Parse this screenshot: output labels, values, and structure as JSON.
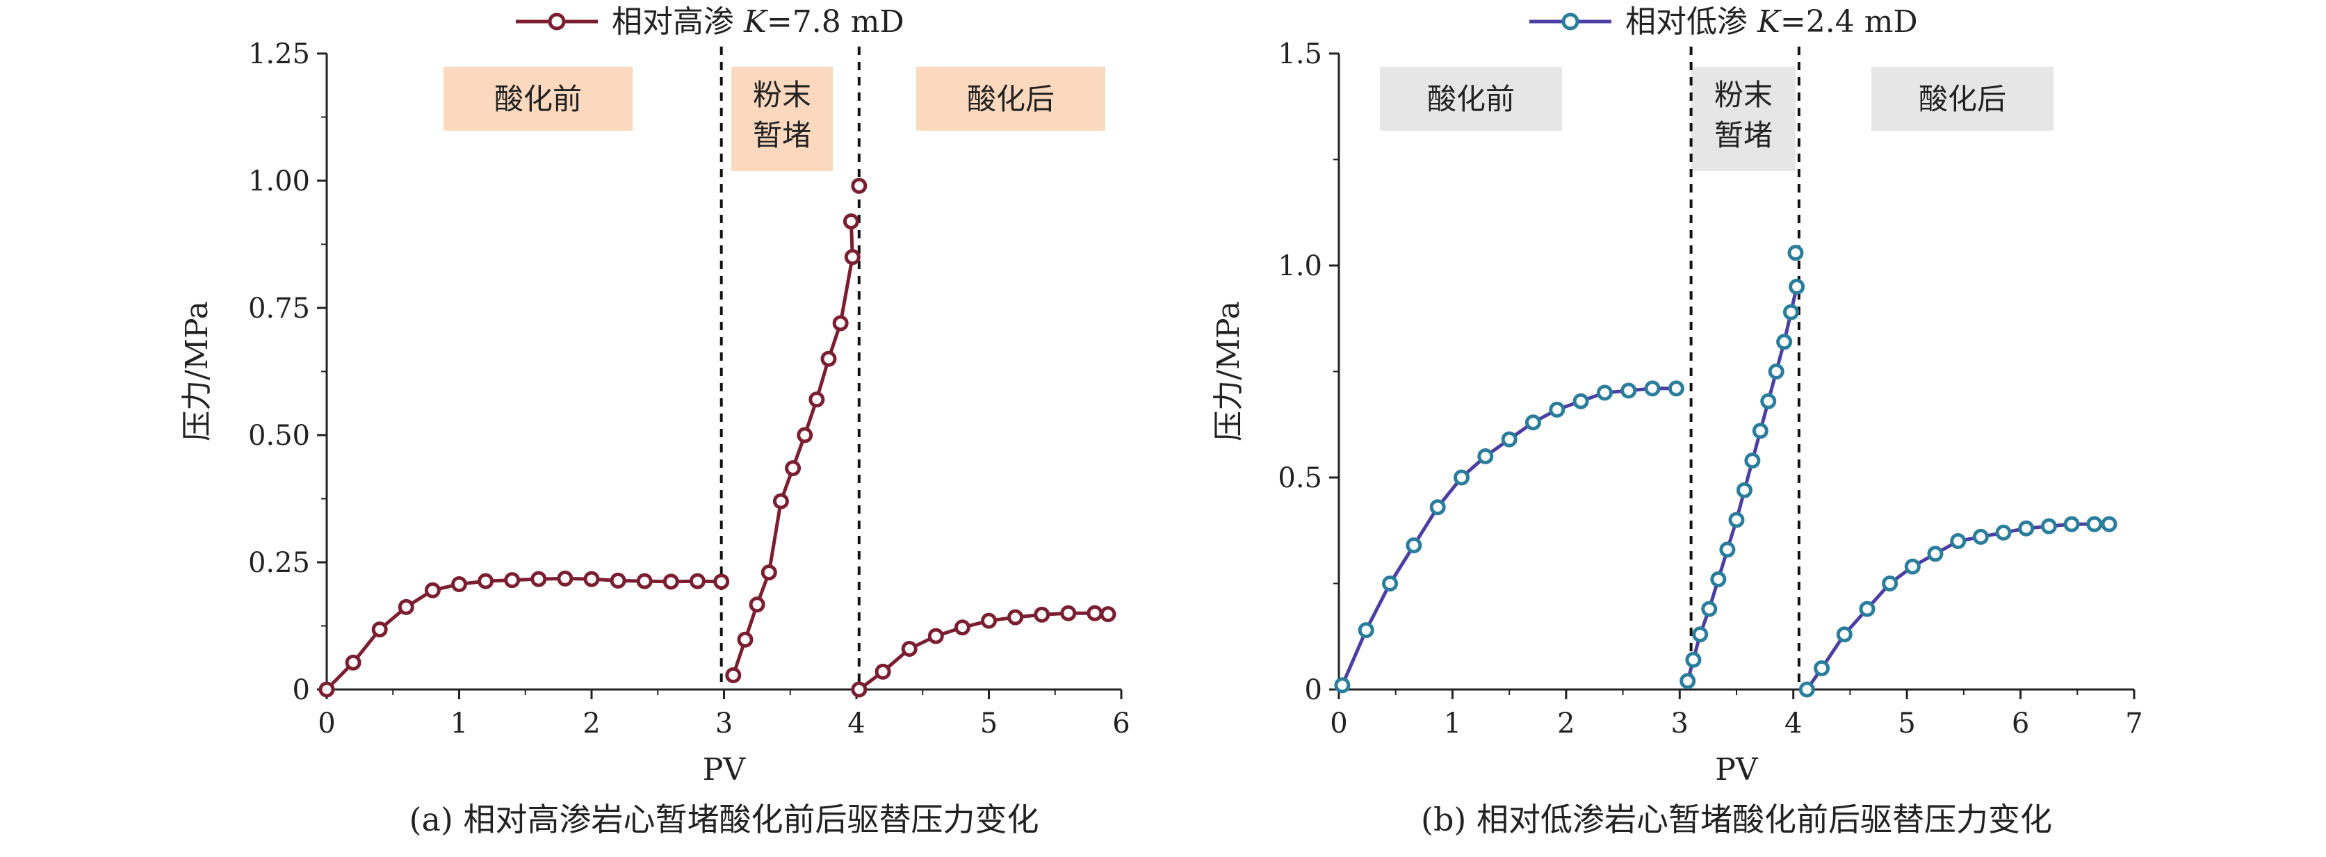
{
  "chart_data": [
    {
      "type": "line",
      "panel": "a",
      "caption": "(a) 相对高渗岩心暂堵酸化前后驱替压力变化",
      "legend": {
        "name": "相对高渗",
        "k_label": "K",
        "k_value": "=7.8 mD"
      },
      "xlabel": "PV",
      "ylabel": "压力/MPa",
      "xlim": [
        0,
        6
      ],
      "ylim": [
        0,
        1.25
      ],
      "xticks": [
        "0",
        "1",
        "2",
        "3",
        "4",
        "5",
        "6"
      ],
      "yticks": [
        "0",
        "0.25",
        "0.50",
        "0.75",
        "1.00",
        "1.25"
      ],
      "xtick_values": [
        0,
        1,
        2,
        3,
        4,
        5,
        6
      ],
      "ytick_values": [
        0,
        0.25,
        0.5,
        0.75,
        1.0,
        1.25
      ],
      "dividers": [
        2.98,
        4.02
      ],
      "stage_labels": [
        "酸化前",
        "粉末\n暂堵",
        "酸化后"
      ],
      "series_color": "#7b1e32",
      "marker_fill": "#ffffff",
      "box_color": "#fbd9bf",
      "segments": [
        {
          "x": [
            0,
            0.2,
            0.4,
            0.6,
            0.8,
            1.0,
            1.2,
            1.4,
            1.6,
            1.8,
            2.0,
            2.2,
            2.4,
            2.6,
            2.8,
            2.98
          ],
          "y": [
            0,
            0.053,
            0.118,
            0.162,
            0.195,
            0.207,
            0.213,
            0.215,
            0.217,
            0.218,
            0.217,
            0.214,
            0.213,
            0.212,
            0.213,
            0.212
          ]
        },
        {
          "x": [
            3.07,
            3.16,
            3.25,
            3.34,
            3.43,
            3.52,
            3.61,
            3.7,
            3.79,
            3.88,
            3.97,
            3.96
          ],
          "y": [
            0.028,
            0.098,
            0.167,
            0.23,
            0.37,
            0.435,
            0.5,
            0.57,
            0.65,
            0.72,
            0.85,
            0.92
          ]
        },
        {
          "x": [
            4.02
          ],
          "y": [
            0.99
          ]
        },
        {
          "x": [
            4.02,
            4.2,
            4.4,
            4.6,
            4.8,
            5.0,
            5.2,
            5.4,
            5.6,
            5.8,
            5.9
          ],
          "y": [
            0.0,
            0.035,
            0.08,
            0.105,
            0.122,
            0.135,
            0.142,
            0.147,
            0.15,
            0.15,
            0.148
          ]
        }
      ]
    },
    {
      "type": "line",
      "panel": "b",
      "caption": "(b) 相对低渗岩心暂堵酸化前后驱替压力变化",
      "legend": {
        "name": "相对低渗",
        "k_label": "K",
        "k_value": "=2.4 mD"
      },
      "xlabel": "PV",
      "ylabel": "压力/MPa",
      "xlim": [
        0,
        7
      ],
      "ylim": [
        0,
        1.5
      ],
      "xticks": [
        "0",
        "1",
        "2",
        "3",
        "4",
        "5",
        "6",
        "7"
      ],
      "yticks": [
        "0",
        "0.5",
        "1.0",
        "1.5"
      ],
      "xtick_values": [
        0,
        1,
        2,
        3,
        4,
        5,
        6,
        7
      ],
      "ytick_values": [
        0,
        0.5,
        1.0,
        1.5
      ],
      "dividers": [
        3.1,
        4.05
      ],
      "stage_labels": [
        "酸化前",
        "粉末\n暂堵",
        "酸化后"
      ],
      "series_color": "#4b3fa4",
      "marker_fill": "#ffffff",
      "marker_stroke": "#2a7d9b",
      "box_color": "#e6e6e6",
      "segments": [
        {
          "x": [
            0.03,
            0.24,
            0.45,
            0.66,
            0.87,
            1.08,
            1.29,
            1.5,
            1.71,
            1.92,
            2.13,
            2.34,
            2.55,
            2.76,
            2.97
          ],
          "y": [
            0.01,
            0.14,
            0.25,
            0.34,
            0.43,
            0.5,
            0.55,
            0.59,
            0.63,
            0.66,
            0.68,
            0.7,
            0.705,
            0.71,
            0.71
          ]
        },
        {
          "x": [
            3.07,
            3.12,
            3.18,
            3.26,
            3.34,
            3.42,
            3.5,
            3.57,
            3.64,
            3.71,
            3.78,
            3.85,
            3.92,
            3.98,
            4.03
          ],
          "y": [
            0.02,
            0.07,
            0.13,
            0.19,
            0.26,
            0.33,
            0.4,
            0.47,
            0.54,
            0.61,
            0.68,
            0.75,
            0.82,
            0.89,
            0.95
          ]
        },
        {
          "x": [
            4.02
          ],
          "y": [
            1.03
          ]
        },
        {
          "x": [
            4.12,
            4.25,
            4.45,
            4.65,
            4.85,
            5.05,
            5.25,
            5.45,
            5.65,
            5.85,
            6.05,
            6.25,
            6.45,
            6.65,
            6.78
          ],
          "y": [
            0.0,
            0.05,
            0.13,
            0.19,
            0.25,
            0.29,
            0.32,
            0.35,
            0.36,
            0.37,
            0.38,
            0.385,
            0.39,
            0.39,
            0.39
          ]
        }
      ]
    }
  ]
}
